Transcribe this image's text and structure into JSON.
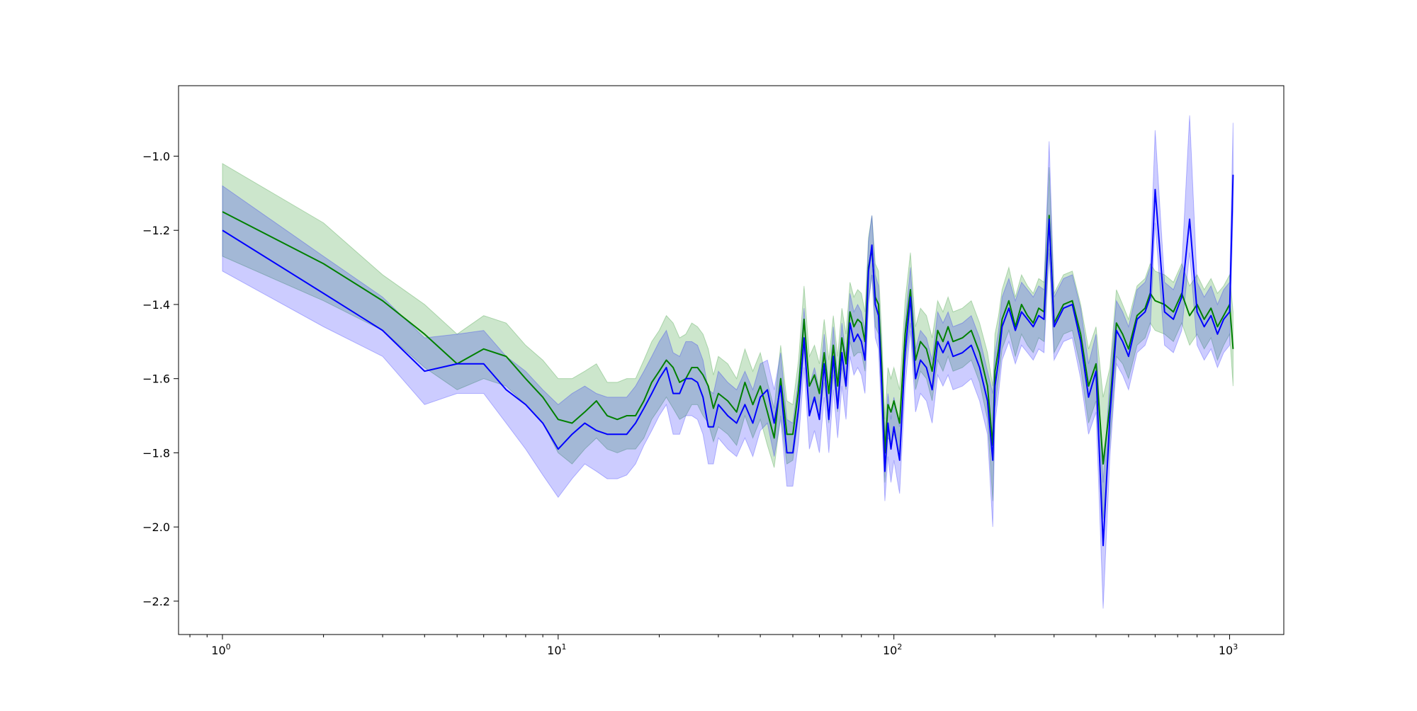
{
  "chart_data": {
    "type": "line",
    "title": "",
    "xlabel": "",
    "ylabel": "",
    "x_scale": "log",
    "xlim": [
      0.74,
      1450
    ],
    "ylim": [
      -2.29,
      -0.81
    ],
    "grid": false,
    "legend": null,
    "x_ticks": [
      {
        "value": 1,
        "base": "10",
        "exp": "0"
      },
      {
        "value": 10,
        "base": "10",
        "exp": "1"
      },
      {
        "value": 100,
        "base": "10",
        "exp": "2"
      },
      {
        "value": 1000,
        "base": "10",
        "exp": "3"
      }
    ],
    "y_ticks": [
      {
        "value": -1.0,
        "label": "−1.0"
      },
      {
        "value": -1.2,
        "label": "−1.2"
      },
      {
        "value": -1.4,
        "label": "−1.4"
      },
      {
        "value": -1.6,
        "label": "−1.6"
      },
      {
        "value": -1.8,
        "label": "−1.8"
      },
      {
        "value": -2.0,
        "label": "−2.0"
      },
      {
        "value": -2.2,
        "label": "−2.2"
      }
    ],
    "series": [
      {
        "color": "#008000",
        "band_color": "#008000",
        "x": [
          1,
          2,
          3,
          4,
          5,
          6,
          7,
          8,
          9,
          10,
          11,
          12,
          13,
          14,
          15,
          16,
          17,
          18,
          19,
          20,
          21,
          22,
          23,
          24,
          25,
          26,
          27,
          28,
          29,
          30,
          32,
          34,
          36,
          38,
          40,
          42,
          44,
          46,
          48,
          50,
          52,
          54,
          56,
          58,
          60,
          62,
          64,
          66,
          68,
          70,
          72,
          74,
          76,
          78,
          80,
          82,
          84,
          86,
          88,
          90,
          92,
          94,
          96,
          98,
          100,
          104,
          108,
          112,
          116,
          120,
          125,
          130,
          135,
          140,
          145,
          150,
          160,
          170,
          180,
          190,
          197,
          200,
          205,
          210,
          220,
          230,
          240,
          250,
          260,
          270,
          280,
          290,
          300,
          320,
          340,
          360,
          380,
          400,
          420,
          440,
          460,
          480,
          500,
          530,
          560,
          580,
          600,
          640,
          680,
          720,
          760,
          800,
          840,
          880,
          920,
          960,
          1000,
          1024
        ],
        "y": [
          -1.15,
          -1.29,
          -1.39,
          -1.48,
          -1.56,
          -1.52,
          -1.54,
          -1.6,
          -1.65,
          -1.71,
          -1.72,
          -1.69,
          -1.66,
          -1.7,
          -1.71,
          -1.7,
          -1.7,
          -1.66,
          -1.61,
          -1.58,
          -1.55,
          -1.57,
          -1.61,
          -1.6,
          -1.57,
          -1.57,
          -1.59,
          -1.62,
          -1.68,
          -1.64,
          -1.66,
          -1.69,
          -1.61,
          -1.67,
          -1.62,
          -1.69,
          -1.76,
          -1.6,
          -1.75,
          -1.75,
          -1.63,
          -1.44,
          -1.62,
          -1.59,
          -1.64,
          -1.53,
          -1.64,
          -1.51,
          -1.62,
          -1.49,
          -1.56,
          -1.42,
          -1.46,
          -1.44,
          -1.45,
          -1.5,
          -1.3,
          -1.25,
          -1.38,
          -1.4,
          -1.57,
          -1.8,
          -1.67,
          -1.69,
          -1.66,
          -1.72,
          -1.48,
          -1.36,
          -1.55,
          -1.5,
          -1.52,
          -1.58,
          -1.47,
          -1.5,
          -1.46,
          -1.5,
          -1.49,
          -1.47,
          -1.53,
          -1.62,
          -1.78,
          -1.58,
          -1.52,
          -1.44,
          -1.39,
          -1.46,
          -1.4,
          -1.43,
          -1.45,
          -1.41,
          -1.42,
          -1.16,
          -1.45,
          -1.4,
          -1.39,
          -1.48,
          -1.62,
          -1.56,
          -1.83,
          -1.67,
          -1.45,
          -1.48,
          -1.52,
          -1.43,
          -1.41,
          -1.37,
          -1.39,
          -1.4,
          -1.42,
          -1.37,
          -1.43,
          -1.4,
          -1.44,
          -1.41,
          -1.46,
          -1.43,
          -1.4,
          -1.52
        ],
        "lower": [
          -1.27,
          -1.39,
          -1.47,
          -1.57,
          -1.63,
          -1.6,
          -1.62,
          -1.67,
          -1.72,
          -1.8,
          -1.83,
          -1.79,
          -1.76,
          -1.79,
          -1.8,
          -1.79,
          -1.79,
          -1.76,
          -1.71,
          -1.68,
          -1.65,
          -1.68,
          -1.71,
          -1.7,
          -1.67,
          -1.67,
          -1.7,
          -1.72,
          -1.77,
          -1.73,
          -1.75,
          -1.78,
          -1.7,
          -1.76,
          -1.71,
          -1.78,
          -1.84,
          -1.7,
          -1.83,
          -1.82,
          -1.7,
          -1.52,
          -1.69,
          -1.66,
          -1.71,
          -1.61,
          -1.72,
          -1.59,
          -1.69,
          -1.57,
          -1.63,
          -1.5,
          -1.54,
          -1.53,
          -1.53,
          -1.58,
          -1.39,
          -1.32,
          -1.46,
          -1.48,
          -1.65,
          -1.88,
          -1.76,
          -1.77,
          -1.75,
          -1.8,
          -1.56,
          -1.45,
          -1.63,
          -1.58,
          -1.6,
          -1.66,
          -1.55,
          -1.58,
          -1.54,
          -1.58,
          -1.57,
          -1.55,
          -1.61,
          -1.71,
          -1.93,
          -1.68,
          -1.6,
          -1.52,
          -1.47,
          -1.54,
          -1.48,
          -1.51,
          -1.53,
          -1.49,
          -1.5,
          -1.25,
          -1.53,
          -1.48,
          -1.47,
          -1.57,
          -1.72,
          -1.66,
          -1.98,
          -1.77,
          -1.54,
          -1.56,
          -1.6,
          -1.51,
          -1.49,
          -1.45,
          -1.47,
          -1.48,
          -1.5,
          -1.45,
          -1.51,
          -1.48,
          -1.52,
          -1.49,
          -1.55,
          -1.51,
          -1.48,
          -1.62
        ],
        "upper": [
          -1.02,
          -1.18,
          -1.32,
          -1.4,
          -1.48,
          -1.43,
          -1.45,
          -1.51,
          -1.55,
          -1.6,
          -1.6,
          -1.58,
          -1.56,
          -1.61,
          -1.61,
          -1.6,
          -1.6,
          -1.55,
          -1.5,
          -1.47,
          -1.43,
          -1.45,
          -1.49,
          -1.48,
          -1.45,
          -1.46,
          -1.48,
          -1.52,
          -1.59,
          -1.54,
          -1.56,
          -1.6,
          -1.52,
          -1.58,
          -1.53,
          -1.61,
          -1.68,
          -1.51,
          -1.66,
          -1.67,
          -1.55,
          -1.35,
          -1.54,
          -1.51,
          -1.56,
          -1.44,
          -1.55,
          -1.43,
          -1.54,
          -1.41,
          -1.48,
          -1.34,
          -1.38,
          -1.36,
          -1.37,
          -1.42,
          -1.22,
          -1.16,
          -1.29,
          -1.31,
          -1.48,
          -1.71,
          -1.57,
          -1.6,
          -1.57,
          -1.63,
          -1.39,
          -1.26,
          -1.46,
          -1.41,
          -1.43,
          -1.49,
          -1.39,
          -1.42,
          -1.38,
          -1.42,
          -1.41,
          -1.39,
          -1.45,
          -1.53,
          -1.62,
          -1.48,
          -1.43,
          -1.36,
          -1.3,
          -1.38,
          -1.32,
          -1.35,
          -1.37,
          -1.33,
          -1.34,
          -1.03,
          -1.37,
          -1.32,
          -1.31,
          -1.4,
          -1.52,
          -1.46,
          -1.65,
          -1.57,
          -1.36,
          -1.4,
          -1.44,
          -1.35,
          -1.33,
          -1.29,
          -1.31,
          -1.32,
          -1.34,
          -1.29,
          -1.35,
          -1.32,
          -1.36,
          -1.33,
          -1.37,
          -1.35,
          -1.32,
          -1.42
        ]
      },
      {
        "color": "#0000ff",
        "band_color": "#0000ff",
        "x": [
          1,
          2,
          3,
          4,
          5,
          6,
          7,
          8,
          9,
          10,
          11,
          12,
          13,
          14,
          15,
          16,
          17,
          18,
          19,
          20,
          21,
          22,
          23,
          24,
          25,
          26,
          27,
          28,
          29,
          30,
          32,
          34,
          36,
          38,
          40,
          42,
          44,
          46,
          48,
          50,
          52,
          54,
          56,
          58,
          60,
          62,
          64,
          66,
          68,
          70,
          72,
          74,
          76,
          78,
          80,
          82,
          84,
          86,
          88,
          90,
          92,
          94,
          96,
          98,
          100,
          104,
          108,
          112,
          116,
          120,
          125,
          130,
          135,
          140,
          145,
          150,
          160,
          170,
          180,
          190,
          197,
          200,
          205,
          210,
          220,
          230,
          240,
          250,
          260,
          270,
          280,
          290,
          300,
          320,
          340,
          360,
          380,
          400,
          420,
          440,
          460,
          480,
          500,
          530,
          560,
          580,
          600,
          640,
          680,
          720,
          760,
          800,
          840,
          880,
          920,
          960,
          1000,
          1024
        ],
        "y": [
          -1.2,
          -1.37,
          -1.47,
          -1.58,
          -1.56,
          -1.56,
          -1.63,
          -1.67,
          -1.72,
          -1.79,
          -1.75,
          -1.72,
          -1.74,
          -1.75,
          -1.75,
          -1.75,
          -1.72,
          -1.68,
          -1.64,
          -1.6,
          -1.57,
          -1.64,
          -1.64,
          -1.6,
          -1.6,
          -1.61,
          -1.65,
          -1.73,
          -1.73,
          -1.67,
          -1.7,
          -1.72,
          -1.67,
          -1.72,
          -1.65,
          -1.63,
          -1.72,
          -1.62,
          -1.8,
          -1.8,
          -1.68,
          -1.49,
          -1.7,
          -1.65,
          -1.71,
          -1.56,
          -1.71,
          -1.54,
          -1.68,
          -1.53,
          -1.62,
          -1.45,
          -1.5,
          -1.48,
          -1.5,
          -1.55,
          -1.31,
          -1.24,
          -1.4,
          -1.43,
          -1.62,
          -1.85,
          -1.72,
          -1.79,
          -1.73,
          -1.82,
          -1.53,
          -1.38,
          -1.6,
          -1.55,
          -1.57,
          -1.63,
          -1.5,
          -1.53,
          -1.5,
          -1.54,
          -1.53,
          -1.51,
          -1.57,
          -1.66,
          -1.82,
          -1.62,
          -1.55,
          -1.46,
          -1.41,
          -1.47,
          -1.42,
          -1.44,
          -1.46,
          -1.43,
          -1.44,
          -1.17,
          -1.46,
          -1.41,
          -1.4,
          -1.5,
          -1.65,
          -1.58,
          -2.05,
          -1.7,
          -1.47,
          -1.5,
          -1.54,
          -1.44,
          -1.42,
          -1.38,
          -1.09,
          -1.42,
          -1.44,
          -1.38,
          -1.17,
          -1.42,
          -1.46,
          -1.43,
          -1.48,
          -1.44,
          -1.42,
          -1.05
        ],
        "lower": [
          -1.31,
          -1.46,
          -1.54,
          -1.67,
          -1.64,
          -1.64,
          -1.72,
          -1.79,
          -1.86,
          -1.92,
          -1.87,
          -1.83,
          -1.85,
          -1.87,
          -1.87,
          -1.86,
          -1.83,
          -1.78,
          -1.74,
          -1.7,
          -1.67,
          -1.75,
          -1.75,
          -1.7,
          -1.7,
          -1.71,
          -1.75,
          -1.83,
          -1.83,
          -1.76,
          -1.79,
          -1.81,
          -1.76,
          -1.81,
          -1.74,
          -1.72,
          -1.81,
          -1.71,
          -1.89,
          -1.89,
          -1.77,
          -1.57,
          -1.79,
          -1.74,
          -1.8,
          -1.65,
          -1.8,
          -1.63,
          -1.76,
          -1.62,
          -1.71,
          -1.54,
          -1.59,
          -1.57,
          -1.59,
          -1.64,
          -1.4,
          -1.32,
          -1.49,
          -1.52,
          -1.71,
          -1.93,
          -1.81,
          -1.88,
          -1.82,
          -1.91,
          -1.62,
          -1.47,
          -1.69,
          -1.64,
          -1.66,
          -1.72,
          -1.59,
          -1.62,
          -1.59,
          -1.63,
          -1.62,
          -1.6,
          -1.66,
          -1.75,
          -2.0,
          -1.72,
          -1.64,
          -1.55,
          -1.5,
          -1.56,
          -1.51,
          -1.53,
          -1.55,
          -1.52,
          -1.53,
          -1.26,
          -1.55,
          -1.5,
          -1.49,
          -1.6,
          -1.75,
          -1.69,
          -2.22,
          -1.81,
          -1.56,
          -1.59,
          -1.63,
          -1.53,
          -1.51,
          -1.47,
          -1.18,
          -1.51,
          -1.53,
          -1.47,
          -1.26,
          -1.51,
          -1.55,
          -1.52,
          -1.57,
          -1.53,
          -1.51,
          -1.15
        ],
        "upper": [
          -1.08,
          -1.27,
          -1.38,
          -1.49,
          -1.48,
          -1.47,
          -1.54,
          -1.58,
          -1.63,
          -1.67,
          -1.64,
          -1.62,
          -1.64,
          -1.65,
          -1.65,
          -1.65,
          -1.62,
          -1.58,
          -1.54,
          -1.5,
          -1.47,
          -1.53,
          -1.54,
          -1.5,
          -1.5,
          -1.51,
          -1.55,
          -1.63,
          -1.64,
          -1.58,
          -1.61,
          -1.63,
          -1.58,
          -1.63,
          -1.56,
          -1.55,
          -1.63,
          -1.53,
          -1.71,
          -1.72,
          -1.6,
          -1.41,
          -1.62,
          -1.57,
          -1.63,
          -1.48,
          -1.63,
          -1.46,
          -1.6,
          -1.45,
          -1.54,
          -1.37,
          -1.42,
          -1.4,
          -1.42,
          -1.47,
          -1.23,
          -1.16,
          -1.32,
          -1.35,
          -1.54,
          -1.76,
          -1.64,
          -1.71,
          -1.65,
          -1.73,
          -1.45,
          -1.3,
          -1.52,
          -1.47,
          -1.49,
          -1.55,
          -1.42,
          -1.45,
          -1.42,
          -1.46,
          -1.45,
          -1.43,
          -1.49,
          -1.58,
          -1.64,
          -1.53,
          -1.47,
          -1.38,
          -1.33,
          -1.39,
          -1.34,
          -1.36,
          -1.38,
          -1.35,
          -1.36,
          -0.96,
          -1.38,
          -1.33,
          -1.32,
          -1.41,
          -1.56,
          -1.48,
          -1.88,
          -1.6,
          -1.39,
          -1.42,
          -1.46,
          -1.36,
          -1.34,
          -1.3,
          -0.93,
          -1.34,
          -1.36,
          -1.3,
          -0.89,
          -1.34,
          -1.38,
          -1.35,
          -1.4,
          -1.36,
          -1.34,
          -0.91
        ]
      }
    ]
  }
}
